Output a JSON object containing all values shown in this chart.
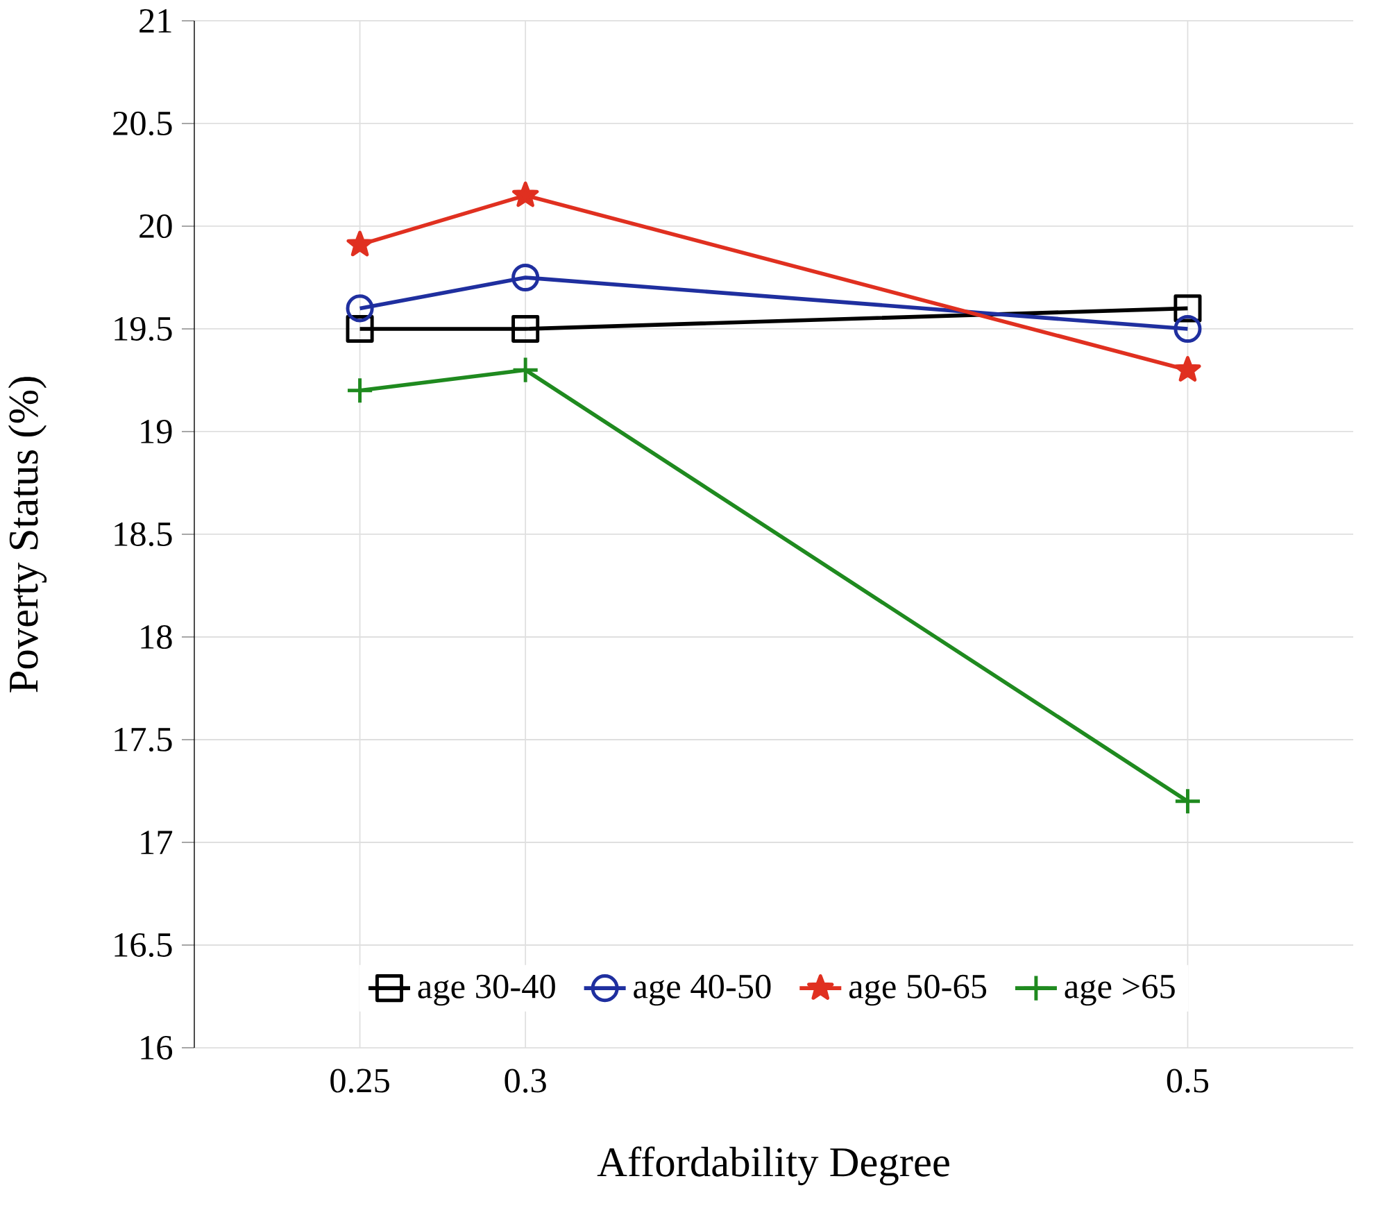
{
  "chart_data": {
    "type": "line",
    "xlabel": "Affordability Degree",
    "ylabel": "Poverty Status (%)",
    "x": [
      0.25,
      0.3,
      0.5
    ],
    "series": [
      {
        "name": "age 30-40",
        "color": "#000000",
        "marker": "square",
        "values": [
          19.5,
          19.5,
          19.6
        ]
      },
      {
        "name": "age 40-50",
        "color": "#1f2f9f",
        "marker": "circle",
        "values": [
          19.6,
          19.75,
          19.5
        ]
      },
      {
        "name": "age 50-65",
        "color": "#e03020",
        "marker": "star",
        "values": [
          19.91,
          20.15,
          19.3
        ]
      },
      {
        "name": "age >65",
        "color": "#1f8a1f",
        "marker": "cross",
        "values": [
          19.2,
          19.3,
          17.2
        ]
      }
    ],
    "xlim": [
      0.2,
      0.55
    ],
    "ylim": [
      16,
      21
    ],
    "xticks": [
      0.25,
      0.3,
      0.5
    ],
    "yticks": [
      16,
      16.5,
      17,
      17.5,
      18,
      18.5,
      19,
      19.5,
      20,
      20.5,
      21
    ],
    "grid": true,
    "legend": "bottom",
    "line_style": "solid"
  }
}
